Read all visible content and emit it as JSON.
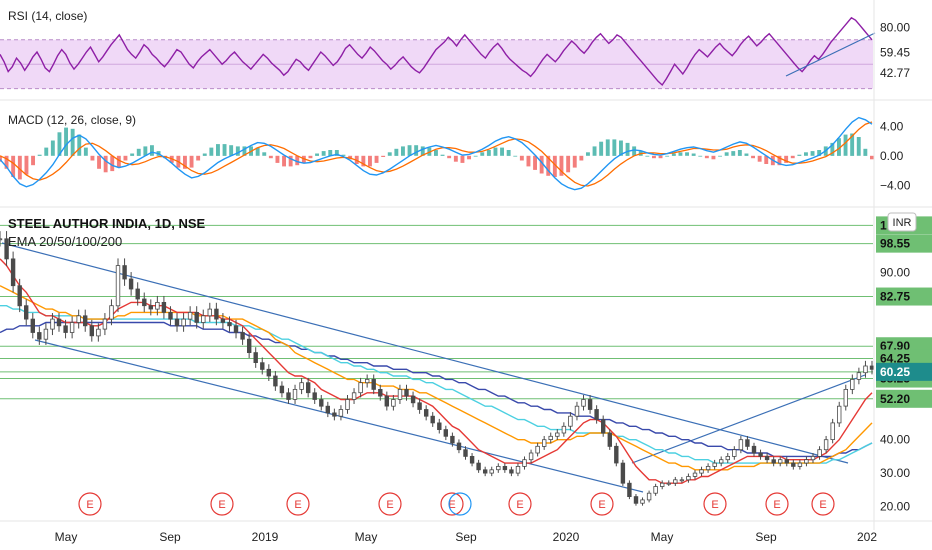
{
  "title": "STEEL AUTHOR INDIA, 1D, NSE",
  "indicators": {
    "rsi_label": "RSI (14, close)",
    "macd_label": "MACD (12, 26, close, 9)",
    "ema_label": "EMA 20/50/100/200",
    "currency": "INR"
  },
  "colors": {
    "rsi_line": "#8e1fa6",
    "rsi_band": "#f0d9f7",
    "macd_line": "#2196f3",
    "signal_line": "#ff6d00",
    "hist_up": "#26a69a",
    "hist_down": "#ef5350",
    "candle_up": "#4a4a4a",
    "ema20": "#e53935",
    "ema50": "#ff9800",
    "ema100": "#4dd0e1",
    "ema200": "#3949ab",
    "trendline": "#3b6fb6",
    "level_line": "#6fbf73",
    "level_tag": "#6fbf73",
    "price_tag": "#1e8c8c",
    "earnings": "#e53935"
  },
  "chart_data": [
    {
      "type": "line",
      "name": "rsi",
      "title": "RSI (14, close)",
      "y_ticks": [
        80.0,
        59.45,
        42.77
      ],
      "y_tick_labels": [
        "80.00",
        "59.45",
        "42.77"
      ],
      "ylim": [
        24,
        96
      ],
      "band": [
        30,
        70
      ],
      "values": [
        58,
        52,
        44,
        48,
        55,
        51,
        45,
        50,
        56,
        60,
        54,
        47,
        44,
        50,
        57,
        62,
        58,
        51,
        46,
        50,
        55,
        60,
        64,
        58,
        52,
        56,
        61,
        66,
        70,
        74,
        68,
        62,
        58,
        55,
        60,
        66,
        63,
        58,
        55,
        51,
        48,
        52,
        57,
        62,
        60,
        55,
        50,
        47,
        52,
        56,
        59,
        62,
        58,
        54,
        50,
        53,
        57,
        60,
        56,
        52,
        49,
        46,
        50,
        54,
        58,
        55,
        51,
        48,
        45,
        41,
        44,
        49,
        54,
        52,
        48,
        45,
        50,
        55,
        60,
        57,
        53,
        49,
        52,
        57,
        63,
        66,
        62,
        58,
        55,
        59,
        64,
        61,
        57,
        53,
        50,
        46,
        49,
        53,
        56,
        52,
        48,
        45,
        43,
        47,
        52,
        57,
        62,
        65,
        68,
        72,
        69,
        65,
        70,
        74,
        70,
        66,
        62,
        58,
        55,
        60,
        64,
        67,
        63,
        58,
        54,
        51,
        48,
        45,
        43,
        40,
        44,
        49,
        54,
        58,
        55,
        52,
        56,
        61,
        65,
        69,
        66,
        62,
        59,
        63,
        68,
        72,
        75,
        71,
        67,
        70,
        74,
        72,
        68,
        64,
        60,
        56,
        52,
        48,
        44,
        40,
        36,
        33,
        38,
        44,
        50,
        46,
        42,
        47,
        53,
        58,
        62,
        59,
        56,
        60,
        64,
        67,
        63,
        60,
        57,
        61,
        66,
        70,
        73,
        69,
        65,
        68,
        72,
        75,
        71,
        67,
        63,
        59,
        55,
        51,
        47,
        44,
        48,
        53,
        57,
        54,
        58,
        63,
        68,
        72,
        76,
        80,
        84,
        88,
        86,
        82,
        78,
        74,
        70
      ]
    },
    {
      "type": "line",
      "name": "macd",
      "title": "MACD (12, 26, close, 9)",
      "y_ticks": [
        4.0,
        0.0,
        -4.0
      ],
      "y_tick_labels": [
        "4.00",
        "0.00",
        "−4.00"
      ],
      "ylim": [
        -6,
        6.5
      ],
      "macd": [
        -0.5,
        -1.5,
        -2.8,
        -3.8,
        -4.2,
        -3.9,
        -3.2,
        -2.3,
        -1.2,
        0.2,
        1.5,
        2.4,
        2.8,
        2.3,
        1.3,
        0.2,
        -0.7,
        -1.3,
        -1.6,
        -1.4,
        -1.0,
        -0.5,
        0.0,
        0.5,
        0.3,
        -0.3,
        -1.0,
        -1.8,
        -2.5,
        -3.0,
        -2.8,
        -2.3,
        -1.6,
        -0.9,
        -0.4,
        0.0,
        0.4,
        0.9,
        1.4,
        1.8,
        1.7,
        1.3,
        0.7,
        0.1,
        -0.4,
        -0.8,
        -1.0,
        -0.9,
        -0.6,
        -0.3,
        0.0,
        0.2,
        -0.1,
        -0.6,
        -1.3,
        -2.0,
        -2.5,
        -2.6,
        -2.3,
        -1.8,
        -1.2,
        -0.6,
        0.0,
        0.5,
        0.9,
        1.2,
        1.4,
        1.2,
        0.9,
        0.5,
        0.1,
        0.2,
        0.5,
        0.9,
        1.4,
        2.0,
        2.4,
        2.6,
        2.3,
        1.8,
        1.0,
        0.1,
        -0.9,
        -2.0,
        -3.0,
        -3.8,
        -4.3,
        -4.6,
        -4.4,
        -3.8,
        -3.0,
        -2.1,
        -1.2,
        -0.4,
        0.2,
        0.6,
        0.8,
        0.7,
        0.4,
        0.2,
        0.1,
        0.3,
        0.6,
        0.9,
        1.1,
        1.2,
        1.0,
        0.7,
        0.5,
        0.8,
        1.2,
        1.6,
        1.9,
        1.7,
        1.2,
        0.6,
        0.0,
        -0.6,
        -1.1,
        -1.3,
        -1.2,
        -0.9,
        -0.6,
        -0.3,
        0.1,
        0.7,
        1.5,
        2.5,
        3.6,
        4.6,
        5.2,
        4.9,
        4.3
      ],
      "signal": [
        0.0,
        -0.4,
        -1.0,
        -1.8,
        -2.6,
        -3.1,
        -3.3,
        -3.0,
        -2.5,
        -1.8,
        -0.9,
        0.1,
        1.0,
        1.6,
        1.7,
        1.3,
        0.7,
        0.0,
        -0.6,
        -1.0,
        -1.2,
        -1.1,
        -0.8,
        -0.4,
        -0.1,
        -0.1,
        -0.4,
        -0.8,
        -1.4,
        -2.0,
        -2.4,
        -2.5,
        -2.3,
        -1.9,
        -1.4,
        -0.9,
        -0.4,
        0.1,
        0.6,
        1.1,
        1.4,
        1.5,
        1.3,
        1.0,
        0.5,
        0.0,
        -0.4,
        -0.7,
        -0.8,
        -0.7,
        -0.5,
        -0.3,
        -0.2,
        -0.3,
        -0.6,
        -1.1,
        -1.6,
        -2.0,
        -2.2,
        -2.1,
        -1.8,
        -1.4,
        -0.9,
        -0.4,
        0.1,
        0.5,
        0.9,
        1.1,
        1.1,
        1.0,
        0.7,
        0.5,
        0.5,
        0.6,
        0.9,
        1.3,
        1.7,
        2.1,
        2.3,
        2.2,
        1.9,
        1.3,
        0.6,
        -0.3,
        -1.2,
        -2.1,
        -2.9,
        -3.6,
        -4.0,
        -4.1,
        -3.8,
        -3.3,
        -2.6,
        -1.8,
        -1.1,
        -0.5,
        0.0,
        0.3,
        0.4,
        0.4,
        0.3,
        0.3,
        0.4,
        0.6,
        0.8,
        1.0,
        1.0,
        0.9,
        0.8,
        0.8,
        0.9,
        1.2,
        1.4,
        1.5,
        1.4,
        1.1,
        0.7,
        0.2,
        -0.3,
        -0.7,
        -1.0,
        -1.0,
        -0.9,
        -0.7,
        -0.4,
        -0.1,
        0.4,
        1.0,
        1.8,
        2.7,
        3.6,
        4.3,
        4.6
      ]
    },
    {
      "type": "candlestick",
      "name": "price",
      "title": "STEEL AUTHOR INDIA, 1D, NSE",
      "x_ticks": [
        "May",
        "Sep",
        "2019",
        "May",
        "Sep",
        "2020",
        "May",
        "Sep",
        "202"
      ],
      "y_ticks": [
        100,
        90,
        80,
        70,
        60,
        50,
        40,
        30,
        20
      ],
      "y_tick_labels": [
        "",
        "90.00",
        "",
        "",
        "",
        "",
        "40.00",
        "30.00",
        "20.00"
      ],
      "ylim": [
        16,
        108
      ],
      "close": [
        100,
        94,
        86,
        80,
        76,
        72,
        70,
        73,
        76,
        74,
        72,
        75,
        77,
        74,
        71,
        73,
        76,
        80,
        92,
        88,
        85,
        82,
        80,
        79,
        81,
        78,
        76,
        74,
        76,
        78,
        75,
        77,
        79,
        76,
        75,
        74,
        72,
        70,
        66,
        63,
        61,
        59,
        56,
        54,
        52,
        55,
        57,
        54,
        52,
        50,
        48,
        47,
        49,
        52,
        54,
        57,
        58,
        55,
        53,
        50,
        52,
        55,
        53,
        51,
        49,
        47,
        45,
        43,
        41,
        39,
        37,
        35,
        33,
        31,
        30,
        31,
        32,
        31,
        30,
        32,
        34,
        36,
        38,
        40,
        41,
        42,
        44,
        47,
        50,
        52,
        49,
        46,
        42,
        38,
        33,
        27,
        23,
        21,
        22,
        24,
        26,
        27,
        27,
        28,
        28,
        29,
        30,
        31,
        32,
        33,
        34,
        35,
        37,
        40,
        38,
        36,
        35,
        34,
        33,
        34,
        33,
        32,
        33,
        34,
        35,
        37,
        40,
        45,
        50,
        55,
        58,
        60,
        62,
        61
      ],
      "ema20": [
        94,
        92,
        89,
        86,
        84,
        81,
        78,
        77,
        77,
        76,
        75,
        75,
        75,
        75,
        74,
        74,
        75,
        77,
        79,
        80,
        81,
        81,
        81,
        80,
        80,
        80,
        79,
        78,
        78,
        78,
        78,
        77,
        77,
        77,
        76,
        76,
        75,
        74,
        72,
        70,
        68,
        66,
        64,
        62,
        60,
        59,
        59,
        58,
        57,
        55,
        54,
        53,
        52,
        52,
        52,
        53,
        54,
        54,
        54,
        53,
        53,
        53,
        53,
        53,
        52,
        51,
        50,
        48,
        46,
        44,
        43,
        41,
        39,
        37,
        36,
        35,
        34,
        33,
        33,
        33,
        33,
        33,
        34,
        35,
        36,
        37,
        39,
        41,
        43,
        45,
        46,
        46,
        45,
        43,
        41,
        38,
        35,
        32,
        30,
        28,
        28,
        27,
        27,
        27,
        27,
        28,
        28,
        29,
        29,
        30,
        31,
        32,
        33,
        34,
        35,
        35,
        35,
        35,
        35,
        35,
        34,
        34,
        34,
        34,
        34,
        35,
        36,
        38,
        40,
        43,
        46,
        49,
        52,
        54
      ],
      "ema50": [
        86,
        85,
        84,
        83,
        82,
        81,
        80,
        79,
        79,
        78,
        78,
        77,
        77,
        76,
        76,
        76,
        76,
        76,
        77,
        77,
        78,
        78,
        78,
        78,
        78,
        78,
        78,
        78,
        78,
        78,
        77,
        77,
        77,
        77,
        77,
        76,
        76,
        76,
        75,
        74,
        73,
        72,
        70,
        69,
        68,
        66,
        65,
        64,
        63,
        62,
        61,
        60,
        59,
        58,
        58,
        57,
        57,
        57,
        56,
        56,
        56,
        55,
        55,
        55,
        54,
        54,
        53,
        52,
        51,
        50,
        49,
        48,
        47,
        46,
        45,
        44,
        43,
        42,
        41,
        40,
        40,
        39,
        39,
        39,
        39,
        40,
        40,
        40,
        41,
        41,
        42,
        42,
        42,
        42,
        41,
        40,
        39,
        38,
        37,
        36,
        35,
        34,
        33,
        33,
        32,
        32,
        31,
        31,
        31,
        31,
        31,
        31,
        32,
        32,
        32,
        32,
        33,
        33,
        33,
        33,
        33,
        33,
        33,
        33,
        33,
        33,
        34,
        35,
        36,
        37,
        39,
        41,
        43,
        45
      ],
      "ema100": [
        80,
        80,
        79,
        79,
        78,
        78,
        78,
        77,
        77,
        77,
        77,
        77,
        77,
        76,
        76,
        76,
        76,
        76,
        76,
        76,
        76,
        76,
        76,
        76,
        76,
        76,
        76,
        76,
        76,
        76,
        75,
        75,
        75,
        75,
        75,
        75,
        74,
        74,
        74,
        73,
        73,
        72,
        71,
        70,
        70,
        69,
        68,
        67,
        66,
        66,
        65,
        64,
        63,
        63,
        62,
        62,
        61,
        61,
        60,
        60,
        59,
        59,
        59,
        58,
        58,
        57,
        57,
        56,
        55,
        55,
        54,
        53,
        52,
        51,
        50,
        50,
        49,
        48,
        47,
        46,
        46,
        45,
        44,
        44,
        43,
        43,
        43,
        43,
        42,
        42,
        42,
        42,
        42,
        42,
        41,
        41,
        40,
        40,
        39,
        38,
        37,
        37,
        36,
        36,
        35,
        35,
        34,
        34,
        34,
        33,
        33,
        33,
        33,
        33,
        33,
        33,
        33,
        33,
        33,
        33,
        33,
        33,
        33,
        33,
        33,
        33,
        33,
        34,
        34,
        35,
        36,
        37,
        38,
        39
      ],
      "ema200": [
        72,
        73,
        73,
        74,
        74,
        74,
        74,
        75,
        75,
        75,
        75,
        75,
        75,
        75,
        75,
        75,
        75,
        75,
        75,
        75,
        75,
        75,
        75,
        75,
        75,
        75,
        74,
        74,
        74,
        74,
        74,
        73,
        73,
        73,
        73,
        72,
        72,
        72,
        71,
        71,
        70,
        70,
        69,
        69,
        68,
        68,
        67,
        67,
        66,
        66,
        65,
        65,
        64,
        64,
        63,
        63,
        63,
        62,
        62,
        62,
        61,
        61,
        61,
        60,
        60,
        60,
        59,
        59,
        58,
        58,
        57,
        57,
        56,
        55,
        55,
        54,
        53,
        53,
        52,
        51,
        51,
        50,
        50,
        49,
        49,
        48,
        48,
        48,
        47,
        47,
        47,
        46,
        46,
        46,
        45,
        45,
        44,
        44,
        43,
        43,
        42,
        42,
        41,
        41,
        40,
        40,
        39,
        39,
        38,
        38,
        38,
        37,
        37,
        37,
        36,
        36,
        36,
        36,
        35,
        35,
        35,
        35,
        35,
        35,
        35,
        35,
        35,
        35,
        36,
        36,
        37,
        37,
        38,
        39
      ],
      "levels": [
        104,
        98.55,
        82.75,
        67.9,
        64.25,
        60.25,
        58.25,
        52.2
      ],
      "level_labels": [
        "1",
        "98.55",
        "82.75",
        "67.90",
        "64.25",
        "60.25",
        "58.25",
        "52.20"
      ],
      "last_price": 60.25,
      "earnings_marker": "E"
    }
  ]
}
